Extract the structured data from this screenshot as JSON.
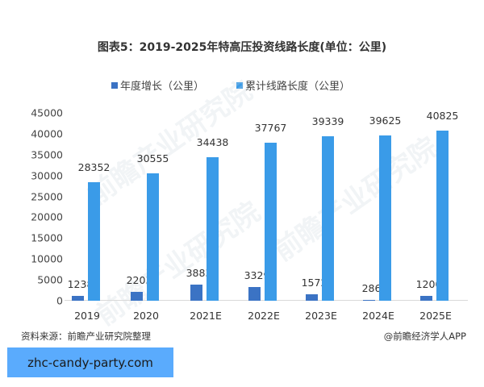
{
  "title": "图表5：2019-2025年特高压投资线路长度(单位：公里)",
  "legend": [
    {
      "label": "年度增长（公里）",
      "color": "#3b73c4"
    },
    {
      "label": "累计线路长度（公里）",
      "color": "#3a9be8"
    }
  ],
  "footer": {
    "source": "资料来源：前瞻产业研究院整理",
    "credit": "@前瞻经济学人APP"
  },
  "banner": {
    "text": "zhc-candy-party.com"
  },
  "watermark": "前瞻产业研究院",
  "chart_data": {
    "type": "bar",
    "title": "图表5：2019-2025年特高压投资线路长度(单位：公里)",
    "xlabel": "",
    "ylabel": "",
    "categories": [
      "2019",
      "2020",
      "2021E",
      "2022E",
      "2023E",
      "2024E",
      "2025E"
    ],
    "series": [
      {
        "name": "年度增长（公里）",
        "color": "#3b73c4",
        "values": [
          1238,
          2203,
          3883,
          3329,
          1572,
          286,
          1200
        ]
      },
      {
        "name": "累计线路长度（公里）",
        "color": "#3a9be8",
        "values": [
          28352,
          30555,
          34438,
          37767,
          39339,
          39625,
          40825
        ]
      }
    ],
    "ylim": [
      0,
      45000
    ],
    "yticks": [
      0,
      5000,
      10000,
      15000,
      20000,
      25000,
      30000,
      35000,
      40000,
      45000
    ],
    "grid": false,
    "legend_position": "top",
    "data_labels": true
  }
}
